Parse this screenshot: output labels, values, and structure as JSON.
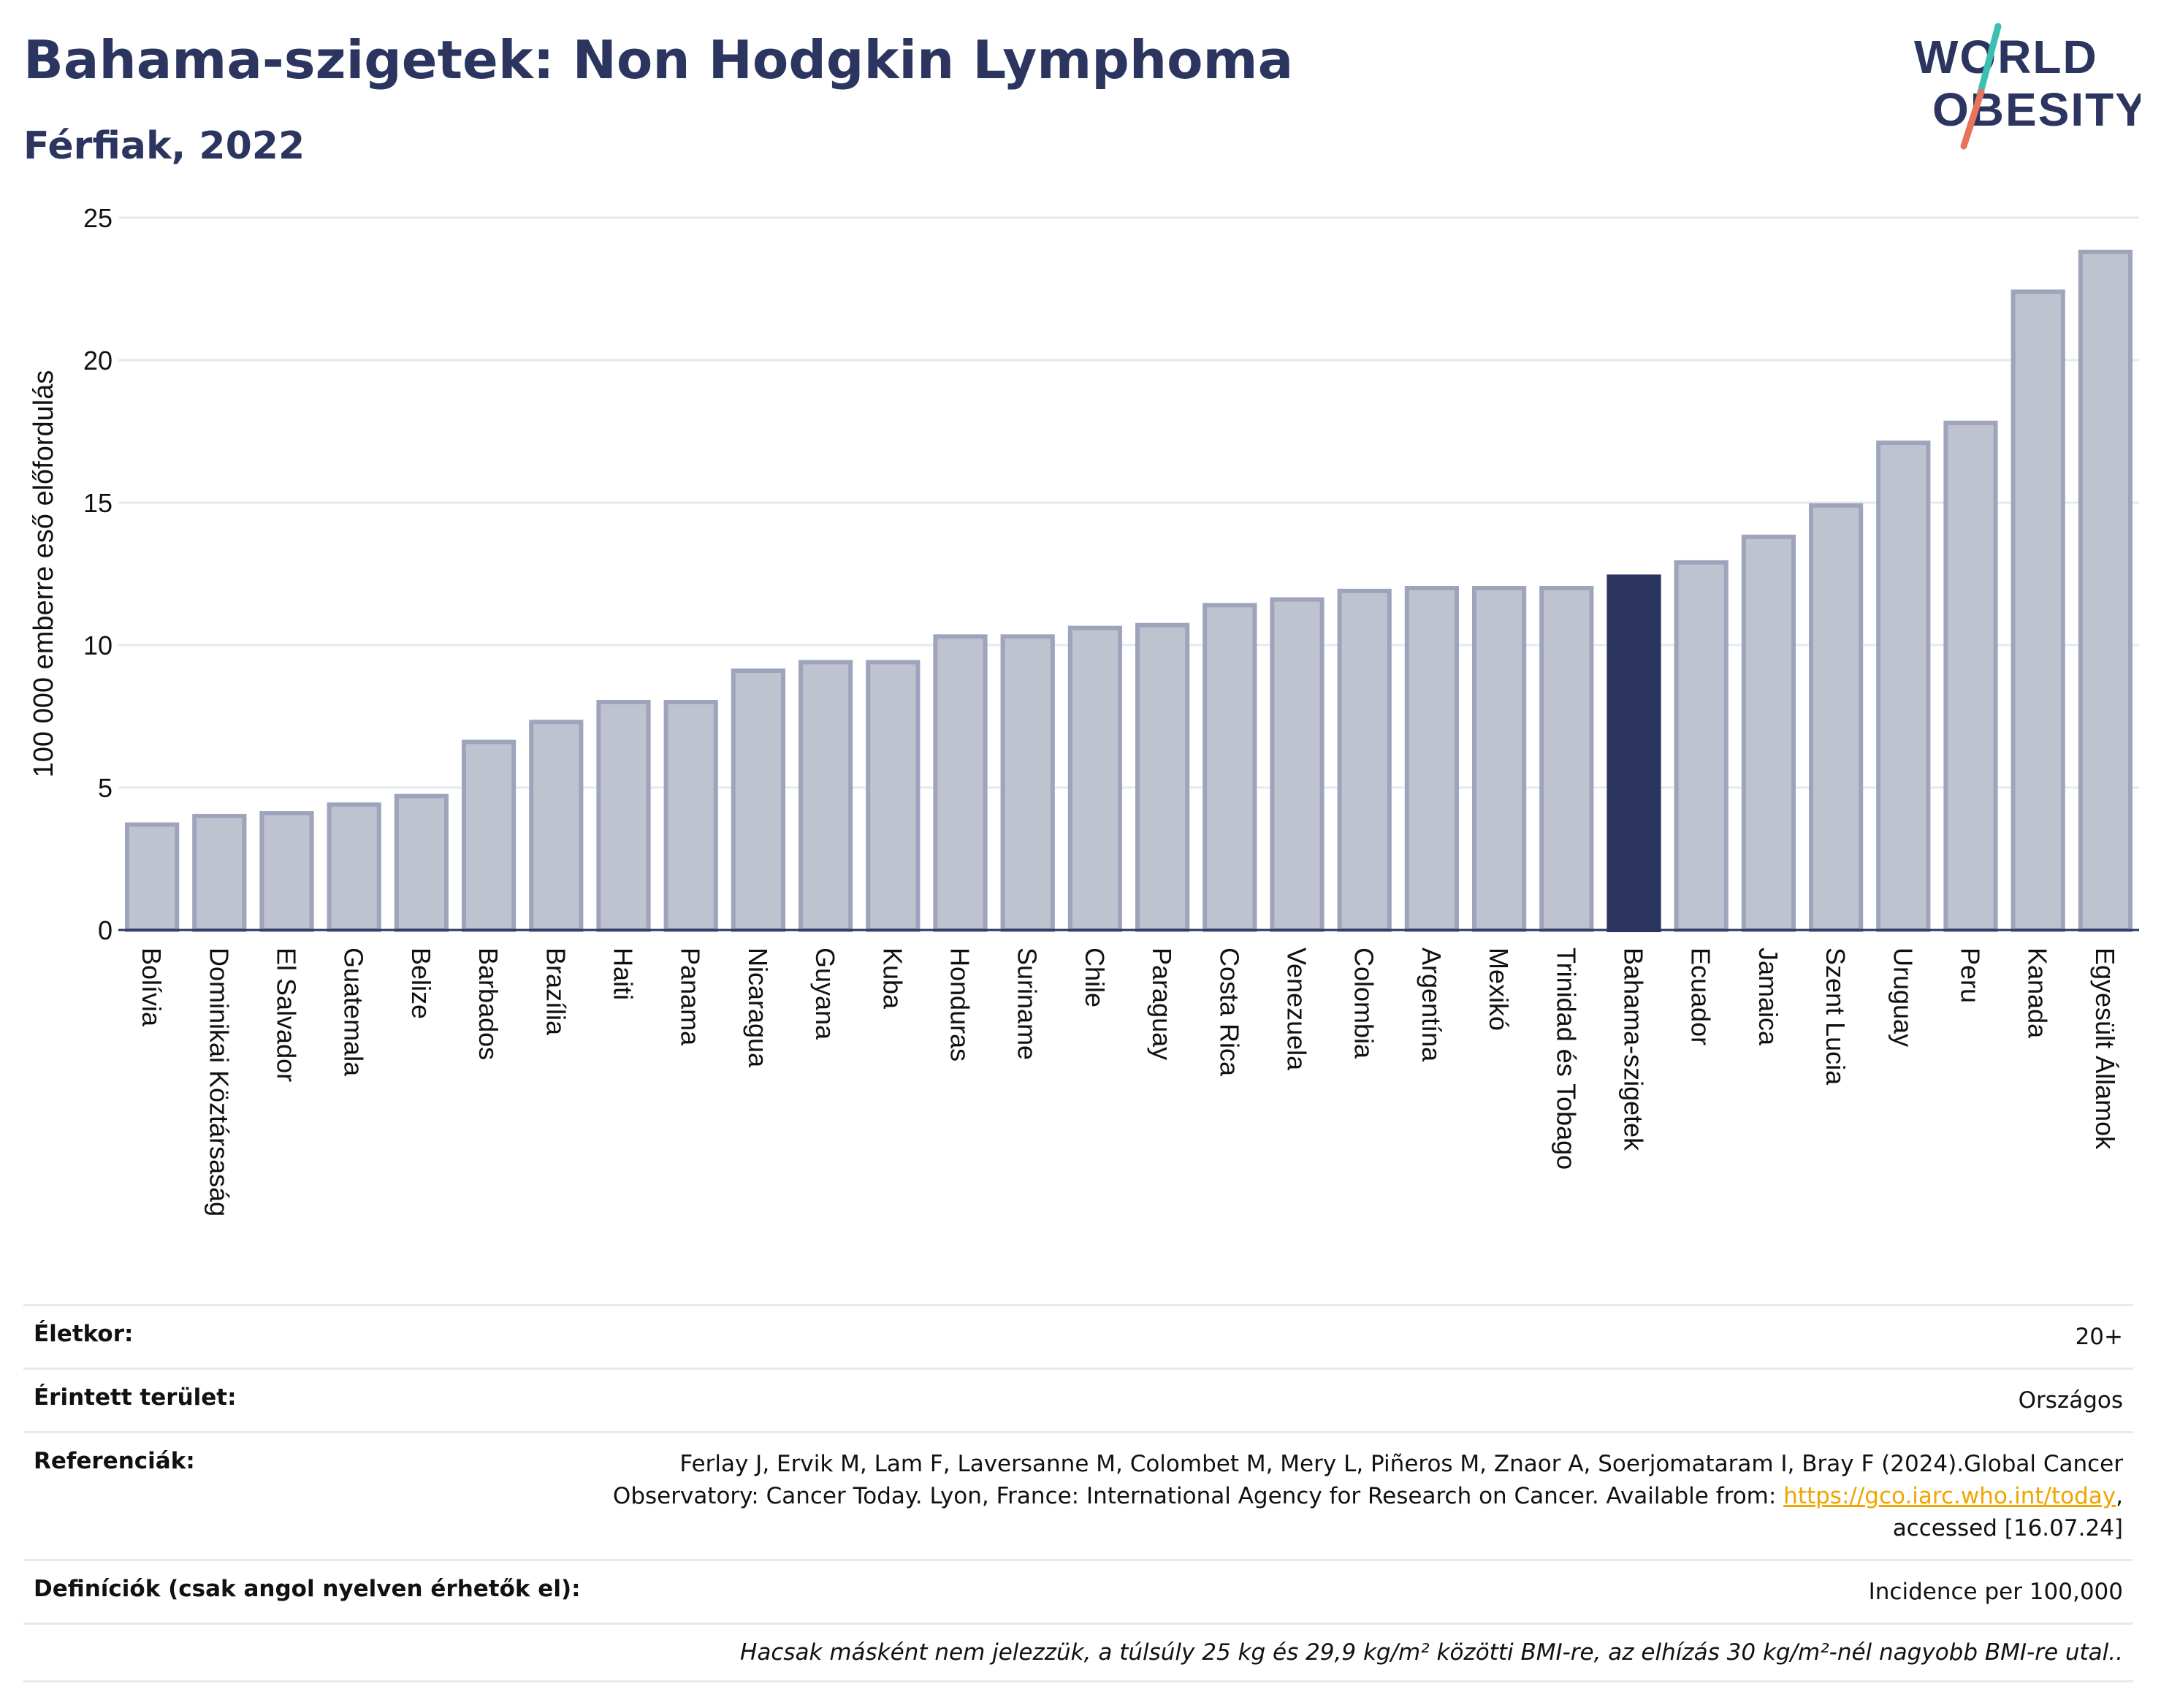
{
  "header": {
    "title": "Bahama-szigetek: Non Hodgkin Lymphoma",
    "subtitle": "Férfiak, 2022"
  },
  "logo": {
    "line1": "WORLD",
    "line2": "OBESITY",
    "colors": {
      "text": "#2b3560",
      "slash_top": "#3bbfb0",
      "slash_bottom": "#e8735a"
    }
  },
  "chart_data": {
    "type": "bar",
    "ylabel": "100 000 emberre eső előfordulás",
    "xlabel": "",
    "ylim": [
      0,
      25
    ],
    "yticks": [
      0,
      5,
      10,
      15,
      20,
      25
    ],
    "grid": true,
    "highlight": "Bahama-szigetek",
    "colors": {
      "bar": "#bfc3d0",
      "bar_edge": "#9ea4bb",
      "highlight": "#2b3560",
      "grid": "#e6e9f2",
      "axis": "#2b3560"
    },
    "categories": [
      "Bolívia",
      "Dominikai Köztársaság",
      "El Salvador",
      "Guatemala",
      "Belize",
      "Barbados",
      "Brazília",
      "Haiti",
      "Panama",
      "Nicaragua",
      "Guyana",
      "Kuba",
      "Honduras",
      "Suriname",
      "Chile",
      "Paraguay",
      "Costa Rica",
      "Venezuela",
      "Colombia",
      "Argentína",
      "Mexikó",
      "Trinidad és Tobago",
      "Bahama-szigetek",
      "Ecuador",
      "Jamaica",
      "Szent Lucia",
      "Uruguay",
      "Peru",
      "Kanada",
      "Egyesült Államok"
    ],
    "values": [
      3.7,
      4.0,
      4.1,
      4.4,
      4.7,
      6.6,
      7.3,
      8.0,
      8.0,
      9.1,
      9.4,
      9.4,
      10.3,
      10.3,
      10.6,
      10.7,
      11.4,
      11.6,
      11.9,
      12.0,
      12.0,
      12.0,
      12.4,
      12.9,
      13.8,
      14.9,
      17.1,
      17.8,
      22.4,
      23.8
    ]
  },
  "info": {
    "age_label": "Életkor:",
    "age_value": "20+",
    "area_label": "Érintett terület:",
    "area_value": "Országos",
    "ref_label": "Referenciák:",
    "ref_text_1": "Ferlay J, Ervik M, Lam F, Laversanne M, Colombet M, Mery L, Piñeros M, Znaor A, Soerjomataram I, Bray F (2024).Global Cancer",
    "ref_text_2": "Observatory: Cancer Today. Lyon, France: International Agency for Research on Cancer. Available from:",
    "ref_link": "https://gco.iarc.who.int/today",
    "ref_text_3": "accessed [16.07.24]",
    "def_label": "Definíciók (csak angol nyelven érhetők el):",
    "def_value": "Incidence per 100,000",
    "note": "Hacsak másként nem jelezzük, a túlsúly 25 kg és 29,9 kg/m² közötti BMI-re, az elhízás 30 kg/m²-nél nagyobb BMI-re utal.."
  }
}
